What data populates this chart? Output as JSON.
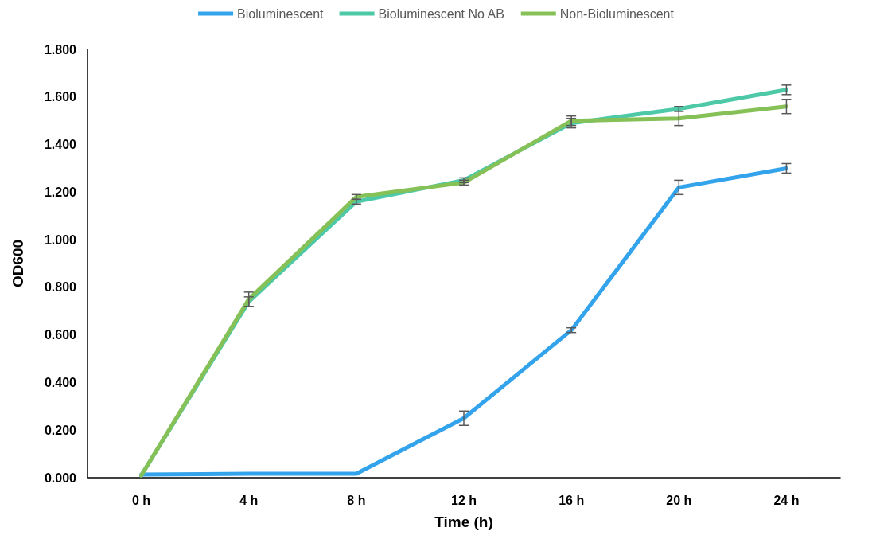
{
  "chart_data": {
    "type": "line",
    "xlabel": "Time (h)",
    "ylabel": "OD600",
    "categories": [
      "0 h",
      "4 h",
      "8 h",
      "12 h",
      "16 h",
      "20 h",
      "24 h"
    ],
    "series": [
      {
        "name": "Bioluminescent",
        "color": "#33a3ec",
        "values": [
          0.013,
          0.017,
          0.017,
          0.25,
          0.62,
          1.22,
          1.3
        ],
        "errors": [
          null,
          null,
          null,
          0.03,
          0.01,
          0.03,
          0.02
        ]
      },
      {
        "name": "Bioluminescent No AB",
        "color": "#4dc9a8",
        "values": [
          0.01,
          0.74,
          1.16,
          1.25,
          1.49,
          1.55,
          1.63
        ],
        "errors": [
          null,
          0.02,
          0.01,
          0.01,
          0.02,
          0.01,
          0.02
        ]
      },
      {
        "name": "Non-Bioluminescent",
        "color": "#86c157",
        "values": [
          0.01,
          0.75,
          1.18,
          1.24,
          1.5,
          1.51,
          1.56
        ],
        "errors": [
          null,
          0.03,
          0.01,
          0.01,
          0.02,
          0.03,
          0.03
        ]
      }
    ],
    "ylim": [
      0,
      1.8
    ],
    "yticks": [
      {
        "value": 0,
        "label": "0.000"
      },
      {
        "value": 0.2,
        "label": "0.200"
      },
      {
        "value": 0.4,
        "label": "0.400"
      },
      {
        "value": 0.6,
        "label": "0.600"
      },
      {
        "value": 0.8,
        "label": "0.800"
      },
      {
        "value": 1.0,
        "label": "1.000"
      },
      {
        "value": 1.2,
        "label": "1.200"
      },
      {
        "value": 1.4,
        "label": "1.400"
      },
      {
        "value": 1.6,
        "label": "1.600"
      },
      {
        "value": 1.8,
        "label": "1.800"
      }
    ],
    "grid": false,
    "legend": "top",
    "marker": "none",
    "line_style": "solid"
  }
}
